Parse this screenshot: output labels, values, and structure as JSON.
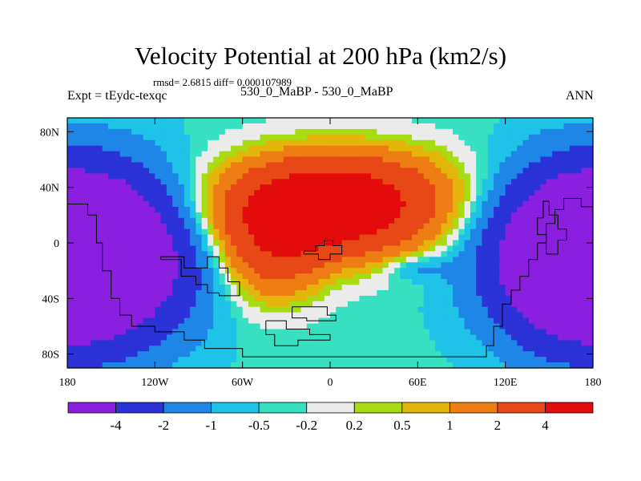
{
  "colors": {
    "levels": [
      "#8a1fe0",
      "#2b32d8",
      "#1e86e6",
      "#1fc3e8",
      "#36e0c0",
      "#ebebeb",
      "#a6dc12",
      "#e4b50a",
      "#ee7d14",
      "#e84716",
      "#e30b0b"
    ],
    "outline": "#000000",
    "continents": "#000000"
  },
  "chart_data": {
    "type": "heatmap",
    "title": "Velocity Potential at 200 hPa (km2/s)",
    "subtitle": "rmsd= 2.6815 diff= 0.000107989",
    "left_label": "Expt = tEydc-texqc",
    "center_label": "530_0_MaBP - 530_0_MaBP",
    "right_label": "ANN",
    "xlim": [
      -180,
      180
    ],
    "ylim": [
      -90,
      90
    ],
    "x_ticks": [
      {
        "value": -180,
        "label": "180"
      },
      {
        "value": -120,
        "label": "120W"
      },
      {
        "value": -60,
        "label": "60W"
      },
      {
        "value": 0,
        "label": "0"
      },
      {
        "value": 60,
        "label": "60E"
      },
      {
        "value": 120,
        "label": "120E"
      },
      {
        "value": 180,
        "label": "180"
      }
    ],
    "y_ticks": [
      {
        "value": 80,
        "label": "80N"
      },
      {
        "value": 40,
        "label": "40N"
      },
      {
        "value": 0,
        "label": "0"
      },
      {
        "value": -40,
        "label": "40S"
      },
      {
        "value": -80,
        "label": "80S"
      }
    ],
    "levels": [
      -4,
      -2,
      -1,
      -0.5,
      -0.2,
      0.2,
      0.5,
      1,
      2,
      4
    ],
    "colorbar_labels": [
      "-4",
      "-2",
      "-1",
      "-0.5",
      "-0.2",
      "0.2",
      "0.5",
      "1",
      "2",
      "4"
    ],
    "field_features": [
      {
        "kind": "high",
        "lon": -3,
        "lat": 22,
        "amp": 6.2,
        "sx": 72,
        "sy": 32
      },
      {
        "kind": "high",
        "lon": -40,
        "lat": -10,
        "amp": 2.6,
        "sx": 35,
        "sy": 35
      },
      {
        "kind": "high",
        "lon": 10,
        "lat": 45,
        "amp": 1.8,
        "sx": 80,
        "sy": 30
      },
      {
        "kind": "low",
        "lon": -160,
        "lat": -10,
        "amp": -7.2,
        "sx": 62,
        "sy": 55
      },
      {
        "kind": "low",
        "lon": 170,
        "lat": -10,
        "amp": -7.0,
        "sx": 55,
        "sy": 55
      },
      {
        "kind": "low",
        "lon": 60,
        "lat": -18,
        "amp": -1.0,
        "sx": 22,
        "sy": 9
      }
    ],
    "continent_outlines": [
      [
        [
          -180,
          28
        ],
        [
          -166,
          28
        ],
        [
          -166,
          20
        ],
        [
          -160,
          20
        ],
        [
          -160,
          0
        ],
        [
          -156,
          0
        ],
        [
          -156,
          -20
        ],
        [
          -150,
          -20
        ],
        [
          -150,
          -40
        ],
        [
          -144,
          -40
        ],
        [
          -144,
          -52
        ],
        [
          -136,
          -52
        ],
        [
          -136,
          -60
        ],
        [
          -120,
          -60
        ],
        [
          -120,
          -64
        ],
        [
          -100,
          -64
        ],
        [
          -100,
          -70
        ],
        [
          -86,
          -70
        ],
        [
          -86,
          -76
        ],
        [
          -60,
          -76
        ],
        [
          -60,
          -82
        ],
        [
          -20,
          -82
        ],
        [
          20,
          -82
        ],
        [
          60,
          -82
        ],
        [
          107,
          -82
        ],
        [
          107,
          -74
        ],
        [
          112,
          -74
        ],
        [
          112,
          -60
        ],
        [
          118,
          -60
        ],
        [
          118,
          -44
        ],
        [
          124,
          -44
        ],
        [
          124,
          -34
        ],
        [
          130,
          -34
        ],
        [
          130,
          -24
        ],
        [
          136,
          -24
        ],
        [
          136,
          -12
        ],
        [
          142,
          -12
        ],
        [
          142,
          0
        ],
        [
          148,
          0
        ],
        [
          148,
          14
        ],
        [
          154,
          14
        ],
        [
          154,
          24
        ],
        [
          160,
          24
        ],
        [
          160,
          32
        ],
        [
          172,
          32
        ],
        [
          172,
          26
        ],
        [
          180,
          26
        ]
      ],
      [
        [
          -116,
          -12
        ],
        [
          -102,
          -12
        ],
        [
          -102,
          -24
        ],
        [
          -92,
          -24
        ],
        [
          -92,
          -30
        ],
        [
          -84,
          -30
        ],
        [
          -84,
          -36
        ],
        [
          -76,
          -36
        ],
        [
          -76,
          -38
        ],
        [
          -62,
          -38
        ],
        [
          -62,
          -28
        ],
        [
          -70,
          -28
        ],
        [
          -70,
          -18
        ],
        [
          -76,
          -18
        ],
        [
          -76,
          -10
        ],
        [
          -84,
          -10
        ],
        [
          -84,
          -18
        ],
        [
          -100,
          -18
        ],
        [
          -100,
          -10
        ],
        [
          -116,
          -10
        ],
        [
          -116,
          -12
        ]
      ],
      [
        [
          -18,
          -6
        ],
        [
          -10,
          -6
        ],
        [
          -10,
          -2
        ],
        [
          -4,
          -2
        ],
        [
          -4,
          2
        ],
        [
          2,
          2
        ],
        [
          2,
          -2
        ],
        [
          8,
          -2
        ],
        [
          8,
          -8
        ],
        [
          0,
          -8
        ],
        [
          0,
          -12
        ],
        [
          -8,
          -12
        ],
        [
          -8,
          -8
        ],
        [
          -18,
          -8
        ],
        [
          -18,
          -6
        ]
      ],
      [
        [
          -26,
          -46
        ],
        [
          -2,
          -46
        ],
        [
          -2,
          -52
        ],
        [
          4,
          -52
        ],
        [
          4,
          -56
        ],
        [
          -16,
          -56
        ],
        [
          -16,
          -54
        ],
        [
          -26,
          -54
        ],
        [
          -26,
          -46
        ]
      ],
      [
        [
          -44,
          -56
        ],
        [
          -30,
          -56
        ],
        [
          -30,
          -62
        ],
        [
          -14,
          -62
        ],
        [
          -14,
          -66
        ],
        [
          0,
          -66
        ],
        [
          0,
          -70
        ],
        [
          -22,
          -70
        ],
        [
          -22,
          -74
        ],
        [
          -38,
          -74
        ],
        [
          -38,
          -66
        ],
        [
          -44,
          -66
        ],
        [
          -44,
          -56
        ]
      ],
      [
        [
          150,
          30
        ],
        [
          150,
          20
        ],
        [
          156,
          20
        ],
        [
          156,
          10
        ],
        [
          162,
          10
        ],
        [
          162,
          2
        ],
        [
          156,
          2
        ],
        [
          156,
          -8
        ],
        [
          148,
          -8
        ],
        [
          148,
          6
        ],
        [
          142,
          6
        ],
        [
          142,
          18
        ],
        [
          146,
          18
        ],
        [
          146,
          30
        ],
        [
          150,
          30
        ]
      ]
    ]
  }
}
